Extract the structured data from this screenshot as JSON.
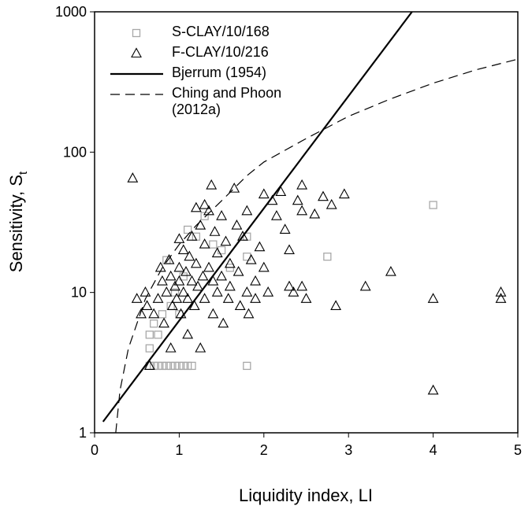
{
  "chart_data": {
    "type": "scatter",
    "x_label": "Liquidity index, LI",
    "y_label": "Sensitivity, S",
    "y_label_sub": "t",
    "xlim": [
      0,
      5
    ],
    "xticks": [
      0,
      1,
      2,
      3,
      4,
      5
    ],
    "ylim": [
      1,
      1000
    ],
    "yticks": [
      1,
      10,
      100,
      1000
    ],
    "log_y": true,
    "legend": "upper left",
    "series": [
      {
        "name": "S-CLAY/10/168",
        "marker": "square",
        "color": "#a8a8a8",
        "x": [
          0.65,
          0.7,
          0.75,
          0.8,
          0.85,
          0.9,
          0.95,
          1.0,
          1.05,
          1.1,
          1.15,
          1.8,
          0.65,
          0.65,
          0.75,
          0.7,
          0.8,
          0.9,
          1.0,
          0.85,
          1.1,
          1.2,
          1.3,
          1.4,
          1.5,
          1.6,
          1.8,
          1.8,
          2.75,
          4.0,
          0.95,
          1.05
        ],
        "values": [
          3,
          3,
          3,
          3,
          3,
          3,
          3,
          3,
          3,
          3,
          3,
          3,
          4,
          5,
          5,
          6,
          7,
          8,
          7,
          17,
          28,
          25,
          35,
          22,
          20,
          15,
          18,
          25,
          18,
          42,
          10,
          13
        ]
      },
      {
        "name": "F-CLAY/10/216",
        "marker": "triangle",
        "color": "#000000",
        "x": [
          0.45,
          0.5,
          0.55,
          0.6,
          0.62,
          0.65,
          0.7,
          0.75,
          0.78,
          0.8,
          0.82,
          0.85,
          0.88,
          0.9,
          0.9,
          0.92,
          0.95,
          0.97,
          1.0,
          1.0,
          1.0,
          1.02,
          1.05,
          1.05,
          1.08,
          1.1,
          1.1,
          1.12,
          1.15,
          1.15,
          1.18,
          1.2,
          1.2,
          1.22,
          1.25,
          1.25,
          1.28,
          1.3,
          1.3,
          1.3,
          1.35,
          1.35,
          1.38,
          1.4,
          1.4,
          1.42,
          1.45,
          1.45,
          1.5,
          1.5,
          1.52,
          1.55,
          1.58,
          1.6,
          1.6,
          1.65,
          1.68,
          1.7,
          1.72,
          1.75,
          1.8,
          1.8,
          1.82,
          1.85,
          1.9,
          1.9,
          1.95,
          2.0,
          2.0,
          2.05,
          2.1,
          2.15,
          2.2,
          2.25,
          2.3,
          2.35,
          2.4,
          2.45,
          2.45,
          2.5,
          2.6,
          2.7,
          2.8,
          2.85,
          2.95,
          3.2,
          3.5,
          4.0,
          4.0,
          4.8,
          4.8,
          2.3,
          2.45
        ],
        "values": [
          65,
          9,
          7,
          10,
          8,
          3,
          7,
          9,
          15,
          12,
          6,
          10,
          17,
          13,
          4,
          8,
          11,
          9,
          24,
          15,
          12,
          7,
          10,
          20,
          14,
          5,
          9,
          18,
          12,
          25,
          8,
          40,
          16,
          11,
          30,
          4,
          13,
          42,
          22,
          9,
          38,
          15,
          58,
          12,
          7,
          27,
          19,
          10,
          35,
          13,
          6,
          23,
          9,
          16,
          11,
          55,
          30,
          14,
          8,
          25,
          38,
          10,
          7,
          17,
          12,
          9,
          21,
          50,
          15,
          10,
          45,
          35,
          52,
          28,
          20,
          10,
          45,
          58,
          38,
          9,
          36,
          48,
          42,
          8,
          50,
          11,
          14,
          9,
          2,
          10,
          9,
          11,
          11
        ]
      },
      {
        "name": "Bjerrum (1954)",
        "marker": "line",
        "dash": "solid",
        "color": "#000000",
        "x": [
          0.1,
          3.75
        ],
        "values": [
          1.2,
          1000
        ]
      },
      {
        "name": "Ching and Phoon (2012a)",
        "marker": "line",
        "dash": "dashed",
        "color": "#000000",
        "x": [
          0.25,
          0.3,
          0.4,
          0.6,
          0.8,
          1.0,
          1.2,
          1.5,
          1.8,
          2.0,
          2.5,
          3.0,
          3.5,
          4.0,
          4.5,
          5.0
        ],
        "values": [
          1,
          2,
          4,
          9,
          15,
          22,
          30,
          45,
          68,
          85,
          125,
          180,
          240,
          310,
          385,
          460
        ]
      }
    ]
  }
}
